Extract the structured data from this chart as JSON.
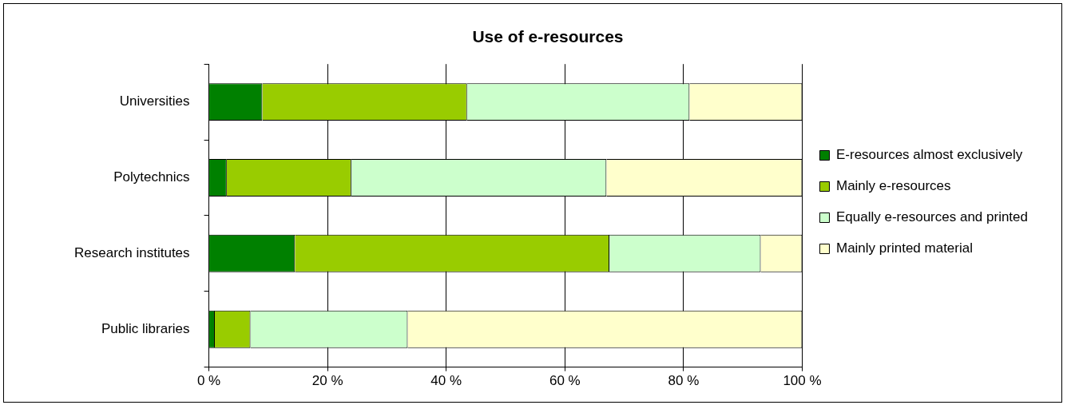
{
  "chart_data": {
    "type": "bar",
    "title": "Use of e-resources",
    "orientation": "horizontal",
    "stacked": true,
    "categories": [
      "Universities",
      "Polytechnics",
      "Research institutes",
      "Public libraries"
    ],
    "series": [
      {
        "name": "E-resources almost exclusively",
        "color": "#008000",
        "values": [
          9,
          3,
          14.5,
          1
        ]
      },
      {
        "name": "Mainly e-resources",
        "color": "#99cc00",
        "values": [
          34.5,
          21,
          53,
          6
        ]
      },
      {
        "name": "Equally e-resources and printed",
        "color": "#ccffcc",
        "values": [
          37.5,
          43,
          25.5,
          26.5
        ]
      },
      {
        "name": "Mainly printed material",
        "color": "#ffffcc",
        "values": [
          19,
          33,
          7,
          66.5
        ]
      }
    ],
    "xlim": [
      0,
      100
    ],
    "xticks": [
      {
        "value": 0,
        "label": "0 %"
      },
      {
        "value": 20,
        "label": "20 %"
      },
      {
        "value": 40,
        "label": "40 %"
      },
      {
        "value": 60,
        "label": "60 %"
      },
      {
        "value": 80,
        "label": "80 %"
      },
      {
        "value": 100,
        "label": "100 %"
      }
    ],
    "grid": "x",
    "legend": "right"
  }
}
